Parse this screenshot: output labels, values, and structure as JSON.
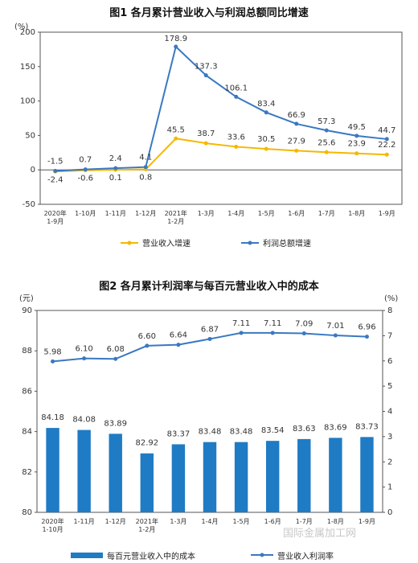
{
  "chart_data": [
    {
      "type": "line",
      "title": "图1  各月累计营业收入与利润总额同比增速",
      "ylabel": "(%)",
      "ylim": [
        -50,
        200
      ],
      "yticks": [
        "-50",
        "0",
        "50",
        "100",
        "150",
        "200"
      ],
      "categories": [
        [
          "2020年",
          "1-9月"
        ],
        [
          "1-10月"
        ],
        [
          "1-11月"
        ],
        [
          "1-12月"
        ],
        [
          "2021年",
          "1-2月"
        ],
        [
          "1-3月"
        ],
        [
          "1-4月"
        ],
        [
          "1-5月"
        ],
        [
          "1-6月"
        ],
        [
          "1-7月"
        ],
        [
          "1-8月"
        ],
        [
          "1-9月"
        ]
      ],
      "series": [
        {
          "name": "营业收入增速",
          "color": "#F5B800",
          "values": [
            -2.4,
            -0.6,
            0.1,
            0.8,
            45.5,
            38.7,
            33.6,
            30.5,
            27.9,
            25.6,
            23.9,
            22.2
          ],
          "labels": [
            "-2.4",
            "-0.6",
            "0.1",
            "0.8",
            "45.5",
            "38.7",
            "33.6",
            "30.5",
            "27.9",
            "25.6",
            "23.9",
            "22.2"
          ]
        },
        {
          "name": "利润总额增速",
          "color": "#3A78C2",
          "values": [
            -1.5,
            0.7,
            2.4,
            4.1,
            178.9,
            137.3,
            106.1,
            83.4,
            66.9,
            57.3,
            49.5,
            44.7
          ],
          "labels": [
            "-1.5",
            "0.7",
            "2.4",
            "4.1",
            "178.9",
            "137.3",
            "106.1",
            "83.4",
            "66.9",
            "57.3",
            "49.5",
            "44.7"
          ]
        }
      ]
    },
    {
      "type": "bar",
      "title": "图2  各月累计利润率与每百元营业收入中的成本",
      "ylabel_left": "(元)",
      "ylabel_right": "(%)",
      "ylim_left": [
        80,
        90
      ],
      "ylim_right": [
        0,
        8
      ],
      "yticks_left": [
        "80",
        "82",
        "84",
        "86",
        "88",
        "90"
      ],
      "yticks_right": [
        "0",
        "1",
        "2",
        "3",
        "4",
        "5",
        "6",
        "7",
        "8"
      ],
      "categories": [
        [
          "2020年",
          "1-10月"
        ],
        [
          "1-11月"
        ],
        [
          "1-12月"
        ],
        [
          "2021年",
          "1-2月"
        ],
        [
          "1-3月"
        ],
        [
          "1-4月"
        ],
        [
          "1-5月"
        ],
        [
          "1-6月"
        ],
        [
          "1-7月"
        ],
        [
          "1-8月"
        ],
        [
          "1-9月"
        ]
      ],
      "series": [
        {
          "name": "每百元营业收入中的成本",
          "kind": "bar",
          "axis": "left",
          "color": "#1F7BC4",
          "values": [
            84.18,
            84.08,
            83.89,
            82.92,
            83.37,
            83.48,
            83.48,
            83.54,
            83.63,
            83.69,
            83.73
          ],
          "labels": [
            "84.18",
            "84.08",
            "83.89",
            "82.92",
            "83.37",
            "83.48",
            "83.48",
            "83.54",
            "83.63",
            "83.69",
            "83.73"
          ]
        },
        {
          "name": "营业收入利润率",
          "kind": "line",
          "axis": "right",
          "color": "#3A78C2",
          "values": [
            5.98,
            6.1,
            6.08,
            6.6,
            6.64,
            6.87,
            7.11,
            7.11,
            7.09,
            7.01,
            6.96
          ],
          "labels": [
            "5.98",
            "6.10",
            "6.08",
            "6.60",
            "6.64",
            "6.87",
            "7.11",
            "7.11",
            "7.09",
            "7.01",
            "6.96"
          ]
        }
      ]
    }
  ],
  "watermark": "国际金属加工网"
}
